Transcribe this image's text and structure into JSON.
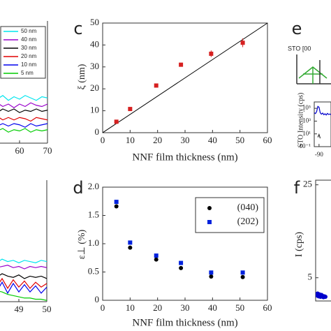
{
  "chart_data": [
    {
      "type": "line",
      "x": [
        50,
        52,
        54,
        56,
        58,
        60,
        62,
        64,
        66,
        68,
        70
      ],
      "xlim": [
        50,
        70
      ],
      "xticks": [
        60,
        70
      ],
      "ylim": [
        0,
        10
      ],
      "legend": "upper left",
      "series": [
        {
          "name": "50 nm",
          "color": "#00e5ee",
          "values": [
            3.8,
            3.6,
            3.9,
            3.5,
            3.8,
            3.6,
            3.9,
            3.7,
            3.5,
            3.8,
            3.7
          ]
        },
        {
          "name": "40 nm",
          "color": "#9900cc",
          "values": [
            3.1,
            3.3,
            3.0,
            3.2,
            2.9,
            3.2,
            3.0,
            3.3,
            3.1,
            3.0,
            3.2
          ]
        },
        {
          "name": "30 nm",
          "color": "#000000",
          "values": [
            2.7,
            2.5,
            2.8,
            2.6,
            2.8,
            2.5,
            2.7,
            2.6,
            2.8,
            2.6,
            2.7
          ]
        },
        {
          "name": "20 nm",
          "color": "#e00000",
          "values": [
            2.0,
            2.2,
            1.9,
            2.1,
            1.9,
            2.1,
            2.0,
            1.8,
            2.1,
            2.0,
            1.9
          ]
        },
        {
          "name": "10 nm",
          "color": "#0000ee",
          "values": [
            1.5,
            1.4,
            1.6,
            1.4,
            1.6,
            1.5,
            1.3,
            1.6,
            1.4,
            1.5,
            1.6
          ]
        },
        {
          "name": "5 nm",
          "color": "#00cc00",
          "values": [
            1.1,
            1.0,
            1.2,
            0.9,
            1.1,
            1.0,
            1.2,
            0.9,
            1.1,
            1.0,
            1.1
          ]
        }
      ]
    },
    {
      "type": "line",
      "x": [
        48,
        48.2,
        48.4,
        48.6,
        48.8,
        49,
        49.2,
        49.4,
        49.6,
        49.8,
        50
      ],
      "xlim": [
        48,
        50
      ],
      "xticks": [
        49,
        50
      ],
      "ylim": [
        0,
        10
      ],
      "series": [
        {
          "color": "#00e5ee",
          "values": [
            3.4,
            3.2,
            3.5,
            3.3,
            3.4,
            3.2,
            3.4,
            3.3,
            3.2,
            3.4,
            3.3
          ]
        },
        {
          "color": "#9900cc",
          "values": [
            3.0,
            2.8,
            2.9,
            3.0,
            2.8,
            2.9,
            2.7,
            2.9,
            2.8,
            2.9,
            2.8
          ]
        },
        {
          "color": "#000000",
          "values": [
            2.2,
            2.0,
            2.3,
            2.1,
            2.0,
            2.2,
            1.9,
            2.1,
            2.0,
            2.1,
            1.9
          ]
        },
        {
          "color": "#e00000",
          "values": [
            1.8,
            1.2,
            1.9,
            1.1,
            1.8,
            1.2,
            1.7,
            1.1,
            1.6,
            1.2,
            1.5
          ]
        },
        {
          "color": "#0000ee",
          "values": [
            1.5,
            0.8,
            1.6,
            0.7,
            1.5,
            0.8,
            1.4,
            0.8,
            1.3,
            0.7,
            1.2
          ]
        },
        {
          "color": "#00cc00",
          "values": [
            1.0,
            0.9,
            0.8,
            0.6,
            0.5,
            0.4,
            0.3,
            0.3,
            0.2,
            0.2,
            0.1
          ]
        }
      ]
    },
    {
      "type": "scatter",
      "panel_label": "c",
      "x_label": "NNF film thickness (nm)",
      "y_label": "ξ (nm)",
      "xlim": [
        0,
        60
      ],
      "xticks": [
        0,
        10,
        20,
        30,
        40,
        50,
        60
      ],
      "ylim": [
        0,
        50
      ],
      "yticks": [
        0,
        10,
        20,
        30,
        40,
        50
      ],
      "fit": {
        "x": [
          0,
          60
        ],
        "values": [
          0,
          50
        ],
        "color": "#000000"
      },
      "series": [
        {
          "color": "#d62020",
          "marker": "square",
          "x": [
            5,
            10,
            19.5,
            28.5,
            39.5,
            51
          ],
          "values": [
            5,
            10.8,
            21.5,
            31,
            36,
            41
          ],
          "errors": [
            0.8,
            0.8,
            0.8,
            0.8,
            1.5,
            2
          ]
        }
      ]
    },
    {
      "type": "scatter",
      "panel_label": "d",
      "x_label": "NNF film thickness (nm)",
      "y_label": "ε⊥ (%)",
      "xlim": [
        0,
        60
      ],
      "xticks": [
        0,
        10,
        20,
        30,
        40,
        50,
        60
      ],
      "ylim": [
        0,
        2
      ],
      "yticks": [
        0,
        {
          "value": 0.5,
          "label": "0.5"
        },
        {
          "value": 1,
          "label": "1.0"
        },
        {
          "value": 1.5,
          "label": "1.5"
        },
        {
          "value": 2,
          "label": "2.0"
        }
      ],
      "legend": "upper right",
      "series": [
        {
          "name": "(040)",
          "color": "#000000",
          "marker": "circle",
          "x": [
            5,
            10,
            19.5,
            28.5,
            39.5,
            51
          ],
          "values": [
            1.66,
            0.93,
            0.72,
            0.57,
            0.42,
            0.41
          ]
        },
        {
          "name": "(202)",
          "color": "#0022dd",
          "marker": "square",
          "x": [
            5,
            10,
            19.5,
            28.5,
            39.5,
            51
          ],
          "values": [
            1.74,
            1.02,
            0.79,
            0.66,
            0.49,
            0.49
          ]
        }
      ]
    },
    {
      "type": "line",
      "panel_label": "e",
      "inset_title": "STO [00",
      "y_label": "STO Intensity (cps)",
      "log_y": true,
      "x": [
        -92,
        -91.5,
        -91,
        -90.5,
        -90,
        -89.5,
        -89,
        -88.5,
        -88,
        -87.5,
        -87,
        -86.5,
        -86,
        -85.5,
        -85
      ],
      "xlim": [
        -92,
        -85
      ],
      "xticks": [
        -90
      ],
      "ylim": [
        0.1,
        1000000
      ],
      "yticks": [
        {
          "value": 0.1,
          "label": "10⁻¹"
        },
        {
          "value": 10,
          "label": "10¹"
        },
        {
          "value": 1000,
          "label": "10³"
        },
        {
          "value": 100000,
          "label": "10⁵"
        }
      ],
      "series": [
        {
          "color": "#0000cc",
          "values": [
            20000,
            15000,
            30000,
            200000,
            150000,
            20000,
            12000,
            18000,
            10000,
            14000,
            9000,
            16000,
            11000,
            13000,
            10000
          ]
        },
        {
          "color": "#333333",
          "values": [
            null,
            null,
            null,
            3,
            8,
            2,
            null,
            null,
            null,
            null,
            null,
            null,
            null,
            null,
            null
          ]
        }
      ]
    },
    {
      "type": "scatter",
      "panel_label": "f",
      "y_label": "I (cps)",
      "xlim": [
        0,
        10
      ],
      "ylim": [
        0,
        26
      ],
      "yticks": [
        5,
        25
      ],
      "series": [
        {
          "color": "#0000cc",
          "marker": "circle",
          "x": [
            0.5,
            1,
            1.5,
            2,
            2.5,
            3,
            3.5,
            4,
            4.5,
            5
          ],
          "values": [
            1.2,
            1.6,
            1.0,
            1.4,
            0.9,
            1.3,
            1.1,
            0.8,
            1.0,
            0.9
          ]
        }
      ]
    }
  ]
}
